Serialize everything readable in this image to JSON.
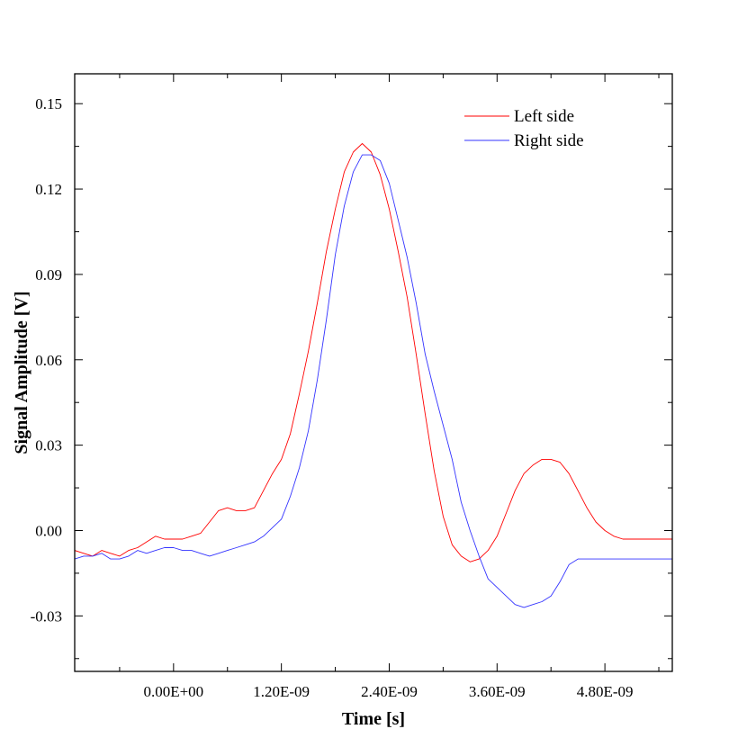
{
  "chart_data": {
    "type": "line",
    "title": "",
    "xlabel": "Time [s]",
    "ylabel": "Signal Amplitude [V]",
    "xlim": [
      -1.1e-09,
      5.55e-09
    ],
    "ylim": [
      -0.0495,
      0.1605
    ],
    "x_ticks": [
      {
        "value": 0,
        "label": "0.00E+00"
      },
      {
        "value": 1.2e-09,
        "label": "1.20E-09"
      },
      {
        "value": 2.4e-09,
        "label": "2.40E-09"
      },
      {
        "value": 3.6e-09,
        "label": "3.60E-09"
      },
      {
        "value": 4.8e-09,
        "label": "4.80E-09"
      }
    ],
    "y_ticks": [
      {
        "value": 0.15,
        "label": "0.15"
      },
      {
        "value": 0.12,
        "label": "0.12"
      },
      {
        "value": 0.09,
        "label": "0.09"
      },
      {
        "value": 0.06,
        "label": "0.06"
      },
      {
        "value": 0.03,
        "label": "0.03"
      },
      {
        "value": 0.0,
        "label": "0.00"
      },
      {
        "value": -0.03,
        "label": "-0.03"
      }
    ],
    "grid": false,
    "legend_position": "top-right",
    "series": [
      {
        "name": "Left side",
        "color": "#ff0000",
        "x": [
          -1.1e-09,
          -1e-09,
          -9e-10,
          -8e-10,
          -7e-10,
          -6e-10,
          -5e-10,
          -4e-10,
          -3e-10,
          -2e-10,
          -1e-10,
          0.0,
          1e-10,
          2e-10,
          3e-10,
          4e-10,
          5e-10,
          6e-10,
          7e-10,
          8e-10,
          9e-10,
          1e-09,
          1.1e-09,
          1.2e-09,
          1.3e-09,
          1.4e-09,
          1.5e-09,
          1.6e-09,
          1.7e-09,
          1.8e-09,
          1.9e-09,
          2e-09,
          2.1e-09,
          2.2e-09,
          2.3e-09,
          2.4e-09,
          2.5e-09,
          2.6e-09,
          2.7e-09,
          2.8e-09,
          2.9e-09,
          3e-09,
          3.1e-09,
          3.2e-09,
          3.3e-09,
          3.4e-09,
          3.5e-09,
          3.6e-09,
          3.7e-09,
          3.8e-09,
          3.9e-09,
          4e-09,
          4.1e-09,
          4.2e-09,
          4.3e-09,
          4.4e-09,
          4.5e-09,
          4.6e-09,
          4.7e-09,
          4.8e-09,
          4.9e-09,
          5e-09,
          5.1e-09,
          5.2e-09,
          5.3e-09,
          5.4e-09,
          5.55e-09
        ],
        "y": [
          -0.007,
          -0.008,
          -0.009,
          -0.007,
          -0.008,
          -0.009,
          -0.007,
          -0.006,
          -0.004,
          -0.002,
          -0.003,
          -0.003,
          -0.003,
          -0.002,
          -0.001,
          0.003,
          0.007,
          0.008,
          0.007,
          0.007,
          0.008,
          0.014,
          0.02,
          0.025,
          0.034,
          0.048,
          0.063,
          0.08,
          0.098,
          0.113,
          0.126,
          0.133,
          0.136,
          0.133,
          0.125,
          0.113,
          0.098,
          0.082,
          0.062,
          0.041,
          0.021,
          0.005,
          -0.005,
          -0.009,
          -0.011,
          -0.01,
          -0.007,
          -0.002,
          0.006,
          0.014,
          0.02,
          0.023,
          0.025,
          0.025,
          0.024,
          0.02,
          0.014,
          0.008,
          0.003,
          0.0,
          -0.002,
          -0.003,
          -0.003,
          -0.003,
          -0.003,
          -0.003,
          -0.003
        ]
      },
      {
        "name": "Right side",
        "color": "#3333ff",
        "x": [
          -1.1e-09,
          -1e-09,
          -9e-10,
          -8e-10,
          -7e-10,
          -6e-10,
          -5e-10,
          -4e-10,
          -3e-10,
          -2e-10,
          -1e-10,
          0.0,
          1e-10,
          2e-10,
          3e-10,
          4e-10,
          5e-10,
          6e-10,
          7e-10,
          8e-10,
          9e-10,
          1e-09,
          1.1e-09,
          1.2e-09,
          1.3e-09,
          1.4e-09,
          1.5e-09,
          1.6e-09,
          1.7e-09,
          1.8e-09,
          1.9e-09,
          2e-09,
          2.1e-09,
          2.2e-09,
          2.3e-09,
          2.4e-09,
          2.5e-09,
          2.6e-09,
          2.7e-09,
          2.8e-09,
          2.9e-09,
          3e-09,
          3.1e-09,
          3.2e-09,
          3.3e-09,
          3.4e-09,
          3.5e-09,
          3.6e-09,
          3.7e-09,
          3.8e-09,
          3.9e-09,
          4e-09,
          4.1e-09,
          4.2e-09,
          4.3e-09,
          4.4e-09,
          4.5e-09,
          4.6e-09,
          4.7e-09,
          4.8e-09,
          4.9e-09,
          5e-09,
          5.1e-09,
          5.2e-09,
          5.3e-09,
          5.4e-09,
          5.55e-09
        ],
        "y": [
          -0.01,
          -0.009,
          -0.009,
          -0.008,
          -0.01,
          -0.01,
          -0.009,
          -0.007,
          -0.008,
          -0.007,
          -0.006,
          -0.006,
          -0.007,
          -0.007,
          -0.008,
          -0.009,
          -0.008,
          -0.007,
          -0.006,
          -0.005,
          -0.004,
          -0.002,
          0.001,
          0.004,
          0.012,
          0.022,
          0.035,
          0.053,
          0.074,
          0.097,
          0.114,
          0.126,
          0.132,
          0.132,
          0.13,
          0.122,
          0.109,
          0.096,
          0.08,
          0.062,
          0.049,
          0.037,
          0.025,
          0.01,
          0.0,
          -0.009,
          -0.017,
          -0.02,
          -0.023,
          -0.026,
          -0.027,
          -0.026,
          -0.025,
          -0.023,
          -0.018,
          -0.012,
          -0.01,
          -0.01,
          -0.01,
          -0.01,
          -0.01,
          -0.01,
          -0.01,
          -0.01,
          -0.01,
          -0.01,
          -0.01
        ]
      }
    ]
  }
}
